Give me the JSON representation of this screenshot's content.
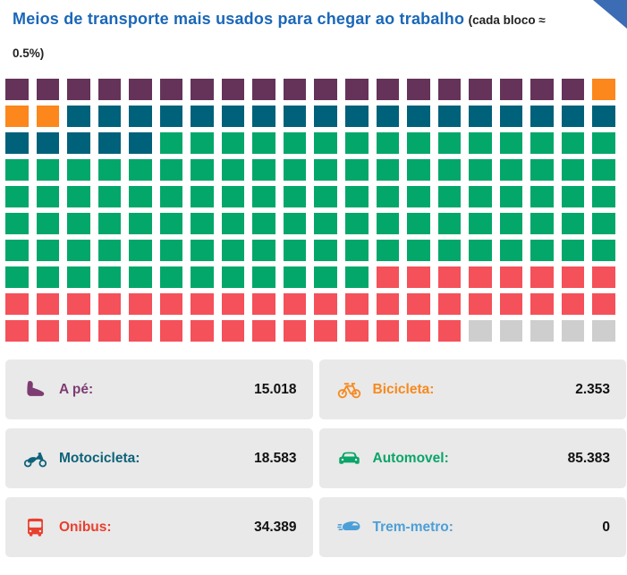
{
  "header": {
    "title": "Meios de transporte mais usados para chegar ao trabalho",
    "subtitle_prefix": "(cada bloco ≈",
    "subtitle_suffix": "0.5%)",
    "title_color": "#1a67b8",
    "corner_ribbon_color": "#3b6cb4"
  },
  "chart_data": {
    "type": "waffle",
    "title": "Meios de transporte mais usados para chegar ao trabalho",
    "note": "cada bloco ≈ 0.5%",
    "block_value_pct": 0.5,
    "grid": {
      "rows": 10,
      "cols": 20,
      "total_blocks": 200
    },
    "series": [
      {
        "key": "a-pe",
        "name": "A pé",
        "value": 15018,
        "blocks": 19,
        "color": "#653359"
      },
      {
        "key": "bicicleta",
        "name": "Bicicleta",
        "value": 2353,
        "blocks": 3,
        "color": "#fb871d"
      },
      {
        "key": "motocicleta",
        "name": "Motocicleta",
        "value": 18583,
        "blocks": 23,
        "color": "#00617a"
      },
      {
        "key": "automovel",
        "name": "Automovel",
        "value": 85383,
        "blocks": 107,
        "color": "#03a76a"
      },
      {
        "key": "onibus",
        "name": "Onibus",
        "value": 34389,
        "blocks": 43,
        "color": "#f4515a"
      },
      {
        "key": "trem-metro",
        "name": "Trem-metro",
        "value": 0,
        "blocks": 0,
        "color": "#4c9fd7"
      },
      {
        "key": "unfilled",
        "name": "unfilled",
        "blocks": 5,
        "color": "#cecece"
      }
    ]
  },
  "legend_cards": [
    {
      "label": "A pé:",
      "value": "15.018",
      "icon": "foot-icon",
      "color": "#7d3c72"
    },
    {
      "label": "Bicicleta:",
      "value": "2.353",
      "icon": "bicycle-icon",
      "color": "#f8891e"
    },
    {
      "label": "Motocicleta:",
      "value": "18.583",
      "icon": "motorcycle-icon",
      "color": "#0e6379"
    },
    {
      "label": "Automovel:",
      "value": "85.383",
      "icon": "car-icon",
      "color": "#0aa569"
    },
    {
      "label": "Onibus:",
      "value": "34.389",
      "icon": "bus-icon",
      "color": "#e8402f"
    },
    {
      "label": "Trem-metro:",
      "value": "0",
      "icon": "train-icon",
      "color": "#4c9fd7"
    }
  ]
}
